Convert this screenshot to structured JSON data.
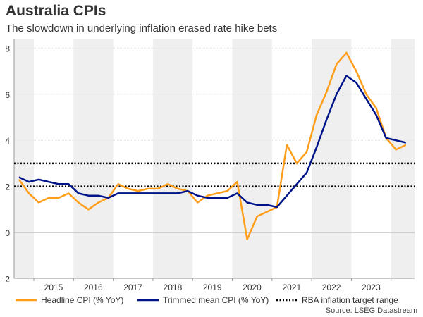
{
  "chart_data": {
    "type": "line",
    "title": "Australia CPIs",
    "subtitle": "The slowdown in underlying inflation erased rate hike bets",
    "source": "Source: LSEG Datastream",
    "x": [
      "2014Q3",
      "2014Q4",
      "2015Q1",
      "2015Q2",
      "2015Q3",
      "2015Q4",
      "2016Q1",
      "2016Q2",
      "2016Q3",
      "2016Q4",
      "2017Q1",
      "2017Q2",
      "2017Q3",
      "2017Q4",
      "2018Q1",
      "2018Q2",
      "2018Q3",
      "2018Q4",
      "2019Q1",
      "2019Q2",
      "2019Q3",
      "2019Q4",
      "2020Q1",
      "2020Q2",
      "2020Q3",
      "2020Q4",
      "2021Q1",
      "2021Q2",
      "2021Q3",
      "2021Q4",
      "2022Q1",
      "2022Q2",
      "2022Q3",
      "2022Q4",
      "2023Q1",
      "2023Q2",
      "2023Q3",
      "2023Q4",
      "2024Q1",
      "2024Q2"
    ],
    "series": [
      {
        "name": "Headline CPI (% YoY)",
        "color": "#ff9e1b",
        "values": [
          2.3,
          1.7,
          1.3,
          1.5,
          1.5,
          1.7,
          1.3,
          1.0,
          1.3,
          1.5,
          2.1,
          1.9,
          1.8,
          1.9,
          1.9,
          2.1,
          1.9,
          1.8,
          1.3,
          1.6,
          1.7,
          1.8,
          2.2,
          -0.3,
          0.7,
          0.9,
          1.1,
          3.8,
          3.0,
          3.5,
          5.1,
          6.1,
          7.3,
          7.8,
          7.0,
          6.0,
          5.4,
          4.1,
          3.6,
          3.8
        ]
      },
      {
        "name": "Trimmed mean CPI (% YoY)",
        "color": "#001489",
        "values": [
          2.4,
          2.2,
          2.3,
          2.2,
          2.1,
          2.1,
          1.7,
          1.6,
          1.6,
          1.5,
          1.7,
          1.7,
          1.7,
          1.7,
          1.7,
          1.7,
          1.7,
          1.8,
          1.6,
          1.5,
          1.5,
          1.5,
          1.7,
          1.3,
          1.2,
          1.2,
          1.1,
          1.6,
          2.1,
          2.6,
          3.7,
          4.9,
          6.0,
          6.8,
          6.5,
          5.8,
          5.1,
          4.1,
          4.0,
          3.9
        ]
      }
    ],
    "reference_lines": {
      "name": "RBA inflation target range",
      "values": [
        2,
        3
      ],
      "color": "#000000"
    },
    "x_tick_labels": [
      "2015",
      "2016",
      "2017",
      "2018",
      "2019",
      "2020",
      "2021",
      "2022",
      "2023"
    ],
    "y_ticks": [
      -2,
      0,
      2,
      4,
      6,
      8
    ],
    "ylim": [
      -2,
      8.4
    ],
    "shaded_years": [
      2014,
      2016,
      2018,
      2020,
      2022,
      2024
    ],
    "grid": true,
    "legend_position": "bottom"
  }
}
